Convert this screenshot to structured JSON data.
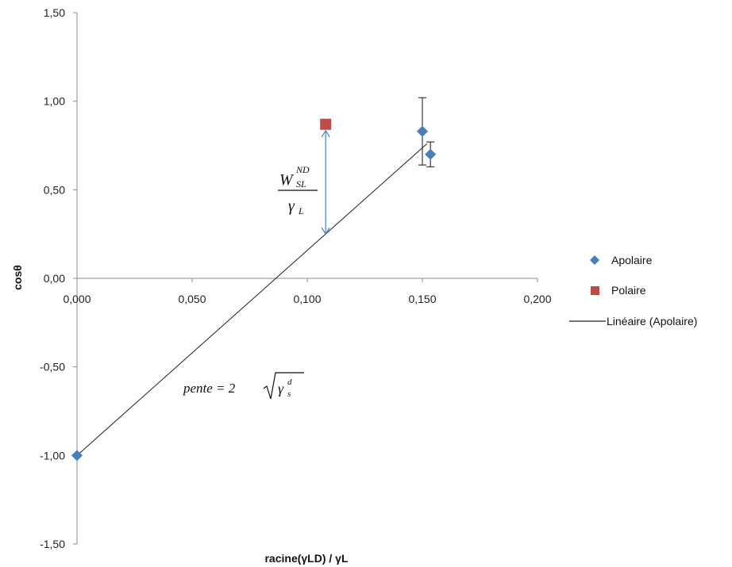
{
  "chart_data": {
    "type": "scatter",
    "xlabel": "racine(γLD) / γL",
    "ylabel": "cosθ",
    "xlim": [
      0,
      0.2
    ],
    "ylim": [
      -1.5,
      1.5
    ],
    "x_ticks": [
      "0,000",
      "0,050",
      "0,100",
      "0,150",
      "0,200"
    ],
    "x_tick_values": [
      0,
      0.05,
      0.1,
      0.15,
      0.2
    ],
    "y_ticks": [
      "1,50",
      "1,00",
      "0,50",
      "0,00",
      "-0,50",
      "-1,00",
      "-1,50"
    ],
    "y_tick_values": [
      1.5,
      1.0,
      0.5,
      0.0,
      -0.5,
      -1.0,
      -1.5
    ],
    "grid": false,
    "legend_position": "right",
    "series": [
      {
        "name": "Apolaire",
        "marker": "diamond",
        "color": "#4a7ebb",
        "points": [
          {
            "x": 0.0,
            "y": -1.0
          },
          {
            "x": 0.15,
            "y": 0.83,
            "err": 0.19
          },
          {
            "x": 0.1535,
            "y": 0.7,
            "err": 0.07
          }
        ]
      },
      {
        "name": "Polaire",
        "marker": "square",
        "color": "#be4b48",
        "points": [
          {
            "x": 0.108,
            "y": 0.87
          }
        ]
      },
      {
        "name": "Linéaire (Apolaire)",
        "type": "line",
        "color": "#222222",
        "x": [
          0.0,
          0.152
        ],
        "y": [
          -1.0,
          0.76
        ]
      }
    ],
    "annotations": {
      "arrow": {
        "x": 0.108,
        "y_from": 0.87,
        "y_to": 0.25,
        "color": "#4a7ebb"
      },
      "fraction_numerator": "W",
      "fraction_numerator_sub": "SL",
      "fraction_numerator_sup": "ND",
      "fraction_denominator": "γ",
      "fraction_denominator_sub": "L",
      "slope_prefix": "pente = 2",
      "slope_root": "γ",
      "slope_root_sub": "s",
      "slope_root_sup": "d"
    }
  }
}
